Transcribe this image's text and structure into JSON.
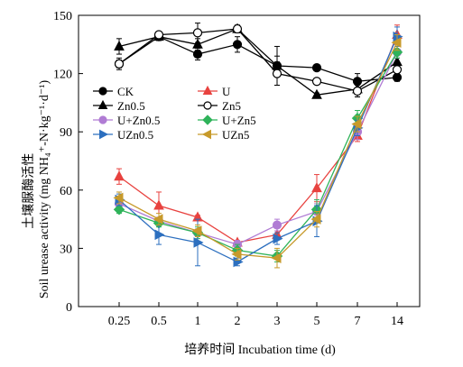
{
  "chart_data": {
    "type": "line",
    "xlabel": "培养时间 Incubation time (d)",
    "ylabel_cn": "土壤脲酶活性",
    "ylabel_en": "Soil urease activity (mg NH₄⁺-N·kg⁻¹·d⁻¹)",
    "x_categories": [
      "0.25",
      "0.5",
      "1",
      "2",
      "3",
      "5",
      "7",
      "14"
    ],
    "y_ticks": [
      0,
      30,
      60,
      90,
      120,
      150
    ],
    "ylim": [
      0,
      150
    ],
    "grid": false,
    "legend_position": "center-left",
    "series": [
      {
        "name": "CK",
        "color": "#000000",
        "marker": "circle",
        "filled": true,
        "values": [
          125,
          139,
          130,
          135,
          124,
          123,
          116,
          118
        ],
        "errors": [
          2,
          1,
          3,
          4,
          5,
          1,
          4,
          2
        ]
      },
      {
        "name": "U",
        "color": "#e8423f",
        "marker": "triangle-up",
        "filled": true,
        "values": [
          67,
          52,
          46,
          33,
          37,
          61,
          88,
          140
        ],
        "errors": [
          4,
          7,
          1,
          1,
          2,
          7,
          3,
          5
        ]
      },
      {
        "name": "Zn0.5",
        "color": "#000000",
        "marker": "triangle-up",
        "filled": true,
        "values": [
          134,
          139,
          135,
          143,
          124,
          109,
          112,
          126
        ],
        "errors": [
          4,
          2,
          3,
          2,
          10,
          1,
          4,
          2
        ]
      },
      {
        "name": "Zn5",
        "color": "#000000",
        "marker": "circle",
        "filled": false,
        "values": [
          125,
          140,
          141,
          143,
          120,
          116,
          111,
          122
        ],
        "errors": [
          3,
          1,
          5,
          1,
          6,
          1,
          3,
          2
        ]
      },
      {
        "name": "U+Zn0.5",
        "color": "#b07cd4",
        "marker": "circle",
        "filled": true,
        "values": [
          53,
          44,
          38,
          32,
          42,
          49,
          90,
          131
        ],
        "errors": [
          3,
          2,
          2,
          2,
          3,
          4,
          4,
          3
        ]
      },
      {
        "name": "U+Zn5",
        "color": "#2fb35a",
        "marker": "diamond",
        "filled": true,
        "values": [
          50,
          43,
          38,
          29,
          26,
          50,
          97,
          131
        ],
        "errors": [
          2,
          2,
          3,
          3,
          3,
          5,
          4,
          3
        ]
      },
      {
        "name": "UZn0.5",
        "color": "#2c6fbf",
        "marker": "triangle-right",
        "filled": true,
        "values": [
          55,
          37,
          33,
          23,
          35,
          44,
          92,
          139
        ],
        "errors": [
          3,
          5,
          12,
          2,
          3,
          8,
          4,
          5
        ]
      },
      {
        "name": "UZn5",
        "color": "#c79a2b",
        "marker": "triangle-left",
        "filled": true,
        "values": [
          56,
          45,
          39,
          27,
          25,
          45,
          94,
          136
        ],
        "errors": [
          3,
          3,
          3,
          3,
          5,
          4,
          4,
          4
        ]
      }
    ]
  }
}
